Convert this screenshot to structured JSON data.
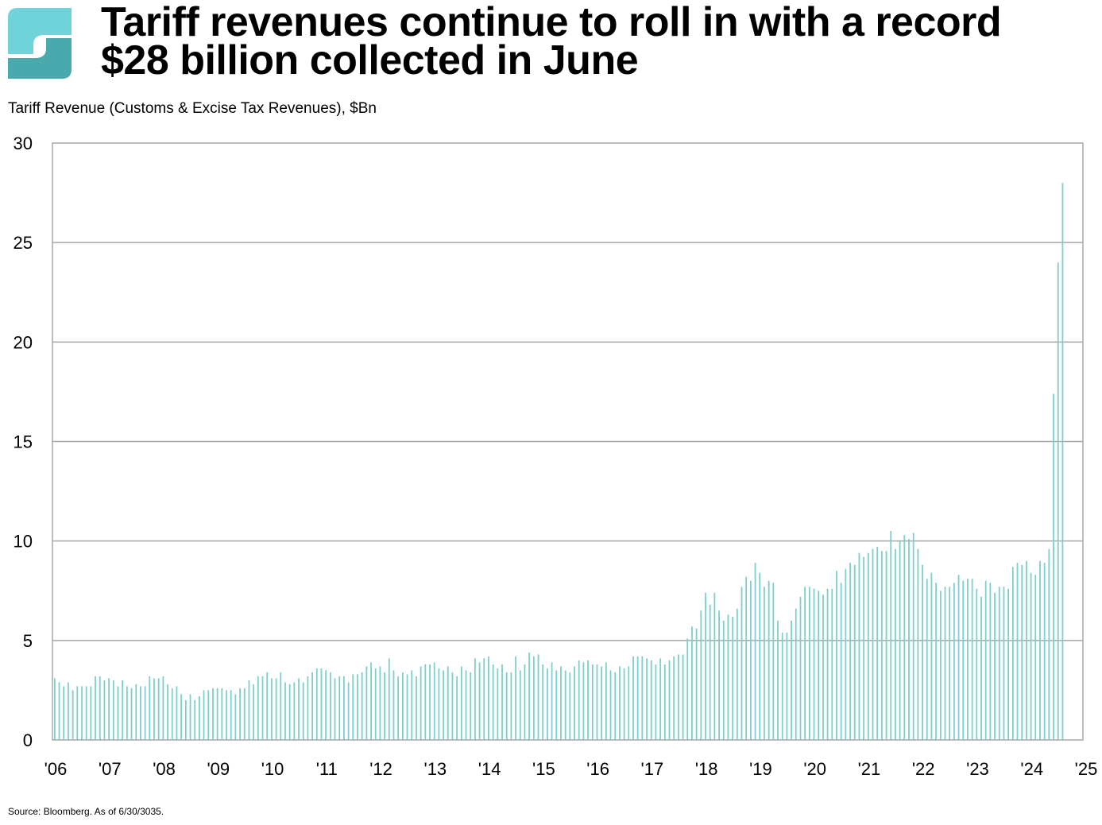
{
  "logo": {
    "icon": "stylized-s-logo-icon",
    "colors": [
      "#6fd3d9",
      "#3d9ea3"
    ]
  },
  "title_line1": "Tariff revenues continue to roll in with a record",
  "title_line2": "$28 billion collected in June",
  "source": "Source: Bloomberg. As of 6/30/3035.",
  "colors": {
    "bar": "#7ccfcc",
    "grid": "#a8a8a8",
    "frame": "#a8a8a8"
  },
  "chart_data": {
    "type": "bar",
    "title": "Tariff revenues continue to roll in with a record $28 billion collected in June",
    "ylabel": "Tariff Revenue (Customs & Excise Tax Revenues), $Bn",
    "xlabel": "",
    "ylim": [
      0,
      30
    ],
    "yticks": [
      0,
      5,
      10,
      15,
      20,
      25,
      30
    ],
    "xticks": [
      "'06",
      "'07",
      "'08",
      "'09",
      "'10",
      "'11",
      "'12",
      "'13",
      "'14",
      "'15",
      "'16",
      "'17",
      "'18",
      "'19",
      "'20",
      "'21",
      "'22",
      "'23",
      "'24",
      "'25"
    ],
    "start": "2006-01",
    "frequency": "monthly",
    "grid": true,
    "legend": "none",
    "values": [
      3.1,
      2.9,
      2.7,
      2.9,
      2.5,
      2.7,
      2.7,
      2.7,
      2.7,
      3.2,
      3.2,
      3.0,
      3.1,
      3.0,
      2.7,
      3.0,
      2.7,
      2.6,
      2.8,
      2.7,
      2.7,
      3.2,
      3.1,
      3.1,
      3.2,
      2.8,
      2.6,
      2.7,
      2.3,
      2.0,
      2.3,
      2.0,
      2.2,
      2.5,
      2.5,
      2.6,
      2.6,
      2.6,
      2.5,
      2.5,
      2.3,
      2.6,
      2.6,
      3.0,
      2.8,
      3.2,
      3.2,
      3.4,
      3.1,
      3.1,
      3.4,
      2.9,
      2.8,
      2.9,
      3.1,
      2.9,
      3.2,
      3.4,
      3.6,
      3.6,
      3.5,
      3.4,
      3.1,
      3.2,
      3.2,
      2.9,
      3.3,
      3.3,
      3.4,
      3.7,
      3.9,
      3.6,
      3.7,
      3.4,
      4.1,
      3.5,
      3.2,
      3.4,
      3.3,
      3.5,
      3.2,
      3.7,
      3.8,
      3.8,
      3.9,
      3.6,
      3.5,
      3.7,
      3.4,
      3.2,
      3.7,
      3.5,
      3.4,
      4.1,
      3.9,
      4.1,
      4.2,
      3.8,
      3.6,
      3.8,
      3.4,
      3.4,
      4.2,
      3.5,
      3.8,
      4.4,
      4.2,
      4.3,
      3.8,
      3.6,
      3.9,
      3.5,
      3.7,
      3.5,
      3.4,
      3.7,
      4.0,
      3.9,
      4.0,
      3.8,
      3.8,
      3.7,
      3.9,
      3.5,
      3.4,
      3.7,
      3.6,
      3.7,
      4.2,
      4.2,
      4.2,
      4.1,
      4.0,
      3.8,
      4.1,
      3.8,
      4.0,
      4.2,
      4.3,
      4.3,
      5.1,
      5.7,
      5.6,
      6.5,
      7.4,
      6.8,
      7.4,
      6.5,
      6.0,
      6.3,
      6.2,
      6.6,
      7.7,
      8.2,
      8.0,
      8.9,
      8.4,
      7.7,
      8.0,
      7.9,
      6.0,
      5.4,
      5.4,
      6.0,
      6.6,
      7.2,
      7.7,
      7.7,
      7.6,
      7.5,
      7.3,
      7.6,
      7.6,
      8.5,
      7.9,
      8.6,
      8.9,
      8.8,
      9.4,
      9.2,
      9.4,
      9.6,
      9.7,
      9.5,
      9.5,
      10.5,
      9.6,
      10.0,
      10.3,
      10.1,
      10.4,
      9.6,
      8.8,
      8.1,
      8.4,
      7.9,
      7.5,
      7.7,
      7.7,
      7.9,
      8.3,
      8.0,
      8.1,
      8.1,
      7.6,
      7.2,
      8.0,
      7.9,
      7.4,
      7.7,
      7.7,
      7.6,
      8.7,
      8.9,
      8.8,
      9.0,
      8.4,
      8.3,
      9.0,
      8.9,
      9.6,
      17.4,
      24.0,
      28.0
    ]
  }
}
